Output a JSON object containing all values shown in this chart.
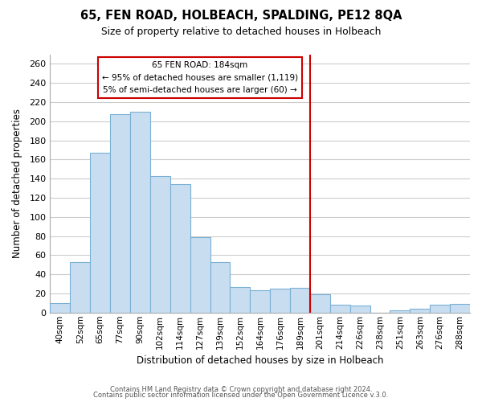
{
  "title": "65, FEN ROAD, HOLBEACH, SPALDING, PE12 8QA",
  "subtitle": "Size of property relative to detached houses in Holbeach",
  "xlabel": "Distribution of detached houses by size in Holbeach",
  "ylabel": "Number of detached properties",
  "bar_labels": [
    "40sqm",
    "52sqm",
    "65sqm",
    "77sqm",
    "90sqm",
    "102sqm",
    "114sqm",
    "127sqm",
    "139sqm",
    "152sqm",
    "164sqm",
    "176sqm",
    "189sqm",
    "201sqm",
    "214sqm",
    "226sqm",
    "238sqm",
    "251sqm",
    "263sqm",
    "276sqm",
    "288sqm"
  ],
  "bar_values": [
    10,
    53,
    167,
    207,
    210,
    143,
    134,
    79,
    53,
    27,
    23,
    25,
    26,
    19,
    8,
    7,
    0,
    2,
    4,
    8,
    9
  ],
  "bar_face_color": "#c9ddf0",
  "bar_edge_color": "#7ab0d4",
  "vline_x": 12.5,
  "vline_color": "#cc0000",
  "annot_title": "65 FEN ROAD: 184sqm",
  "annot_line1": "← 95% of detached houses are smaller (1,119)",
  "annot_line2": "5% of semi-detached houses are larger (60) →",
  "annot_box_fc": "#ffffff",
  "annot_box_ec": "#cc0000",
  "ylim": [
    0,
    270
  ],
  "yticks": [
    0,
    20,
    40,
    60,
    80,
    100,
    120,
    140,
    160,
    180,
    200,
    220,
    240,
    260
  ],
  "footer1": "Contains HM Land Registry data © Crown copyright and database right 2024.",
  "footer2": "Contains public sector information licensed under the Open Government Licence v.3.0.",
  "bg_color": "#ffffff",
  "grid_color": "#cccccc"
}
